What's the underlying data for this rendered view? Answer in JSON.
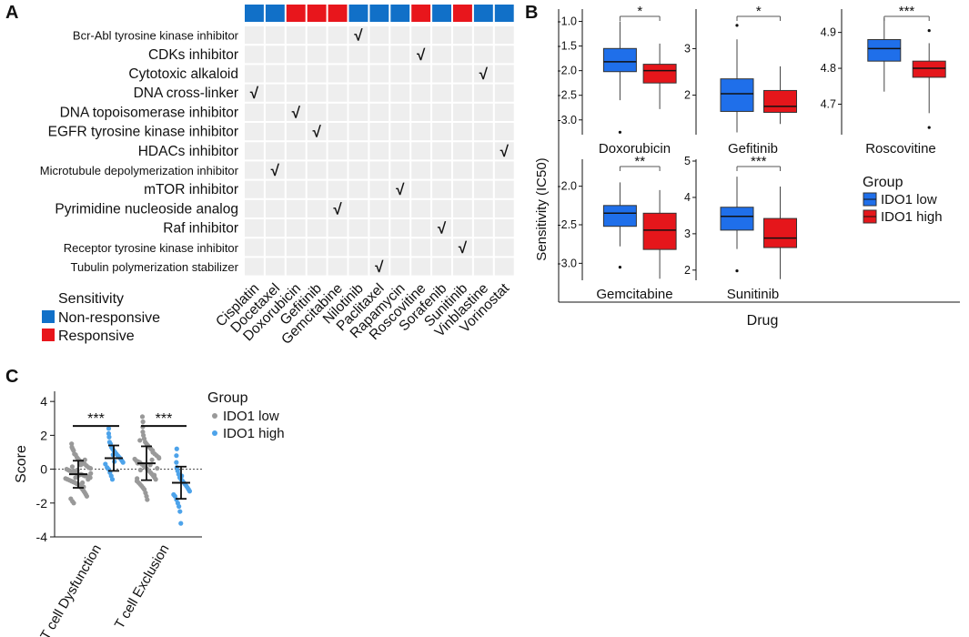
{
  "colors": {
    "responsive": "#e8161c",
    "non_responsive": "#1170c8",
    "cell": "#eeeeee",
    "check": "#e8161c",
    "ido1_low_box": "#1f6fea",
    "ido1_high_box": "#e5161b",
    "dot_low": "#999999",
    "dot_high": "#4da3ea"
  },
  "chart_data": [
    {
      "panel": "A",
      "type": "heatmap",
      "title": "",
      "drugs": [
        "Cisplatin",
        "Docetaxel",
        "Doxorubicin",
        "Gefitinib",
        "Gemcitabine",
        "Nilotinib",
        "Paclitaxel",
        "Rapamycin",
        "Roscovitine",
        "Sorafenib",
        "Sunitinib",
        "Vinblastine",
        "Vorinostat"
      ],
      "sensitivity": [
        "Non-responsive",
        "Non-responsive",
        "Responsive",
        "Responsive",
        "Responsive",
        "Non-responsive",
        "Non-responsive",
        "Non-responsive",
        "Responsive",
        "Non-responsive",
        "Responsive",
        "Non-responsive",
        "Non-responsive"
      ],
      "targets": [
        "Bcr-Abl tyrosine kinase inhibitor",
        "CDKs inhibitor",
        "Cytotoxic alkaloid",
        "DNA cross-linker",
        "DNA topoisomerase inhibitor",
        "EGFR tyrosine kinase inhibitor",
        "HDACs inhibitor",
        "Microtubule depolymerization inhibitor",
        "mTOR inhibitor",
        "Pyrimidine nucleoside analog",
        "Raf inhibitor",
        "Receptor tyrosine kinase inhibitor",
        "Tubulin polymerization stabilizer"
      ],
      "checks": [
        [
          0,
          5
        ],
        [
          1,
          8
        ],
        [
          2,
          11
        ],
        [
          3,
          0
        ],
        [
          4,
          2
        ],
        [
          5,
          3
        ],
        [
          6,
          12
        ],
        [
          7,
          1
        ],
        [
          8,
          7
        ],
        [
          9,
          4
        ],
        [
          10,
          9
        ],
        [
          11,
          10
        ],
        [
          12,
          6
        ]
      ],
      "check_mark": "√",
      "legend_title": "Sensitivity",
      "legend": [
        "Non-responsive",
        "Responsive"
      ]
    },
    {
      "panel": "B",
      "type": "box",
      "ylabel": "Sensitivity (IC50)",
      "xlabel": "Drug",
      "legend_title": "Group",
      "legend": [
        "IDO1 low",
        "IDO1 high"
      ],
      "subplots": [
        {
          "name": "Doxorubicin",
          "ylim": [
            -3.3,
            -0.75
          ],
          "ticks": [
            -1.0,
            -1.5,
            -2.0,
            -2.5,
            -3.0
          ],
          "tick_labels": [
            "-1.0",
            "-1.5",
            "-2.0",
            "-2.5",
            "-3.0"
          ],
          "sig": "*",
          "low": {
            "min": -2.6,
            "q1": -2.02,
            "median": -1.82,
            "q3": -1.55,
            "max": -1.0,
            "outliers": [
              -3.25
            ]
          },
          "high": {
            "min": -2.78,
            "q1": -2.25,
            "median": -2.0,
            "q3": -1.87,
            "max": -1.45,
            "outliers": []
          }
        },
        {
          "name": "Gefitinib",
          "ylim": [
            1.15,
            3.85
          ],
          "ticks": [
            3,
            2
          ],
          "tick_labels": [
            "3",
            "2"
          ],
          "sig": "*",
          "low": {
            "min": 1.2,
            "q1": 1.65,
            "median": 2.03,
            "q3": 2.35,
            "max": 3.2,
            "outliers": [
              3.5
            ]
          },
          "high": {
            "min": 1.38,
            "q1": 1.63,
            "median": 1.76,
            "q3": 2.1,
            "max": 2.62,
            "outliers": []
          }
        },
        {
          "name": "Roscovitine",
          "ylim": [
            4.615,
            4.965
          ],
          "ticks": [
            4.9,
            4.8,
            4.7
          ],
          "tick_labels": [
            "4.9",
            "4.8",
            "4.7"
          ],
          "sig": "***",
          "low": {
            "min": 4.735,
            "q1": 4.82,
            "median": 4.855,
            "q3": 4.88,
            "max": 4.94,
            "outliers": []
          },
          "high": {
            "min": 4.675,
            "q1": 4.775,
            "median": 4.8,
            "q3": 4.82,
            "max": 4.87,
            "outliers": [
              4.905,
              4.635
            ]
          }
        },
        {
          "name": "Gemcitabine",
          "ylim": [
            -3.22,
            -1.65
          ],
          "ticks": [
            -2.0,
            -2.5,
            -3.0
          ],
          "tick_labels": [
            "-2.0",
            "-2.5",
            "-3.0"
          ],
          "sig": "**",
          "low": {
            "min": -2.78,
            "q1": -2.52,
            "median": -2.35,
            "q3": -2.25,
            "max": -1.95,
            "outliers": [
              -3.05
            ]
          },
          "high": {
            "min": -3.2,
            "q1": -2.82,
            "median": -2.57,
            "q3": -2.35,
            "max": -2.05,
            "outliers": []
          }
        },
        {
          "name": "Sunitinib",
          "ylim": [
            1.72,
            5.05
          ],
          "ticks": [
            5,
            4,
            3,
            2
          ],
          "tick_labels": [
            "5",
            "4",
            "3",
            "2"
          ],
          "sig": "***",
          "low": {
            "min": 2.58,
            "q1": 3.1,
            "median": 3.48,
            "q3": 3.73,
            "max": 4.57,
            "outliers": [
              1.98
            ]
          },
          "high": {
            "min": 1.75,
            "q1": 2.62,
            "median": 2.88,
            "q3": 3.42,
            "max": 4.3,
            "outliers": []
          }
        }
      ]
    },
    {
      "panel": "C",
      "type": "scatter",
      "ylabel": "Score",
      "ylim": [
        -4,
        4.6
      ],
      "yticks": [
        4,
        2,
        0,
        -2,
        -4
      ],
      "ytick_labels": [
        "4",
        "2",
        "0",
        "-2",
        "-4"
      ],
      "categories": [
        "T cell Dysfunction",
        "T cell Exclusion"
      ],
      "legend_title": "Group",
      "legend": [
        "IDO1 low",
        "IDO1 high"
      ],
      "sig": [
        "***",
        "***"
      ],
      "groups": [
        {
          "category": "T cell Dysfunction",
          "group": "IDO1 low",
          "mean": -0.3,
          "sd": 0.8,
          "values": [
            1.5,
            1.3,
            1.2,
            1.1,
            0.9,
            0.85,
            0.7,
            0.6,
            0.5,
            0.45,
            0.35,
            0.3,
            0.2,
            0.1,
            0.05,
            0.0,
            -0.05,
            -0.1,
            -0.15,
            -0.2,
            -0.2,
            -0.25,
            -0.3,
            -0.3,
            -0.35,
            -0.4,
            -0.4,
            -0.45,
            -0.5,
            -0.55,
            -0.6,
            -0.65,
            -0.7,
            -0.75,
            -0.8,
            -0.85,
            -0.9,
            -1.0,
            -1.1,
            -1.2,
            -1.3,
            -1.4,
            -1.5,
            -1.6,
            -1.75,
            -1.9,
            -2.0,
            0.15,
            -0.1,
            -0.5,
            -0.05,
            -0.35,
            0.25,
            -0.8,
            -1.05,
            0.55,
            -0.6,
            -0.25
          ]
        },
        {
          "category": "T cell Dysfunction",
          "group": "IDO1 high",
          "mean": 0.65,
          "sd": 0.75,
          "values": [
            2.4,
            2.1,
            1.9,
            1.6,
            1.5,
            1.3,
            1.2,
            1.1,
            1.0,
            0.9,
            0.8,
            0.7,
            0.6,
            0.5,
            0.4,
            0.3,
            0.1,
            0.0,
            -0.2,
            -0.4,
            -0.6,
            0.85,
            0.45
          ]
        },
        {
          "category": "T cell Exclusion",
          "group": "IDO1 low",
          "mean": 0.35,
          "sd": 1.0,
          "values": [
            3.1,
            2.8,
            2.5,
            2.2,
            2.0,
            1.8,
            1.6,
            1.5,
            1.4,
            1.3,
            1.2,
            1.0,
            0.9,
            0.8,
            0.7,
            0.6,
            0.5,
            0.45,
            0.4,
            0.3,
            0.2,
            0.1,
            0.0,
            -0.1,
            -0.2,
            -0.3,
            -0.4,
            -0.5,
            -0.6,
            -0.7,
            -0.8,
            -0.9,
            -1.0,
            -1.1,
            -1.2,
            -1.4,
            -1.6,
            -1.8,
            0.25,
            0.55,
            1.1,
            -0.35,
            0.05,
            0.65,
            -0.55,
            1.7,
            0.35,
            -0.05
          ]
        },
        {
          "category": "T cell Exclusion",
          "group": "IDO1 high",
          "mean": -0.8,
          "sd": 0.95,
          "values": [
            1.2,
            0.8,
            0.4,
            0.1,
            -0.1,
            -0.3,
            -0.5,
            -0.6,
            -0.7,
            -0.8,
            -0.9,
            -1.0,
            -1.1,
            -1.2,
            -1.3,
            -1.5,
            -1.6,
            -1.8,
            -2.0,
            -2.2,
            -2.5,
            -3.2,
            -0.4
          ]
        }
      ]
    }
  ]
}
